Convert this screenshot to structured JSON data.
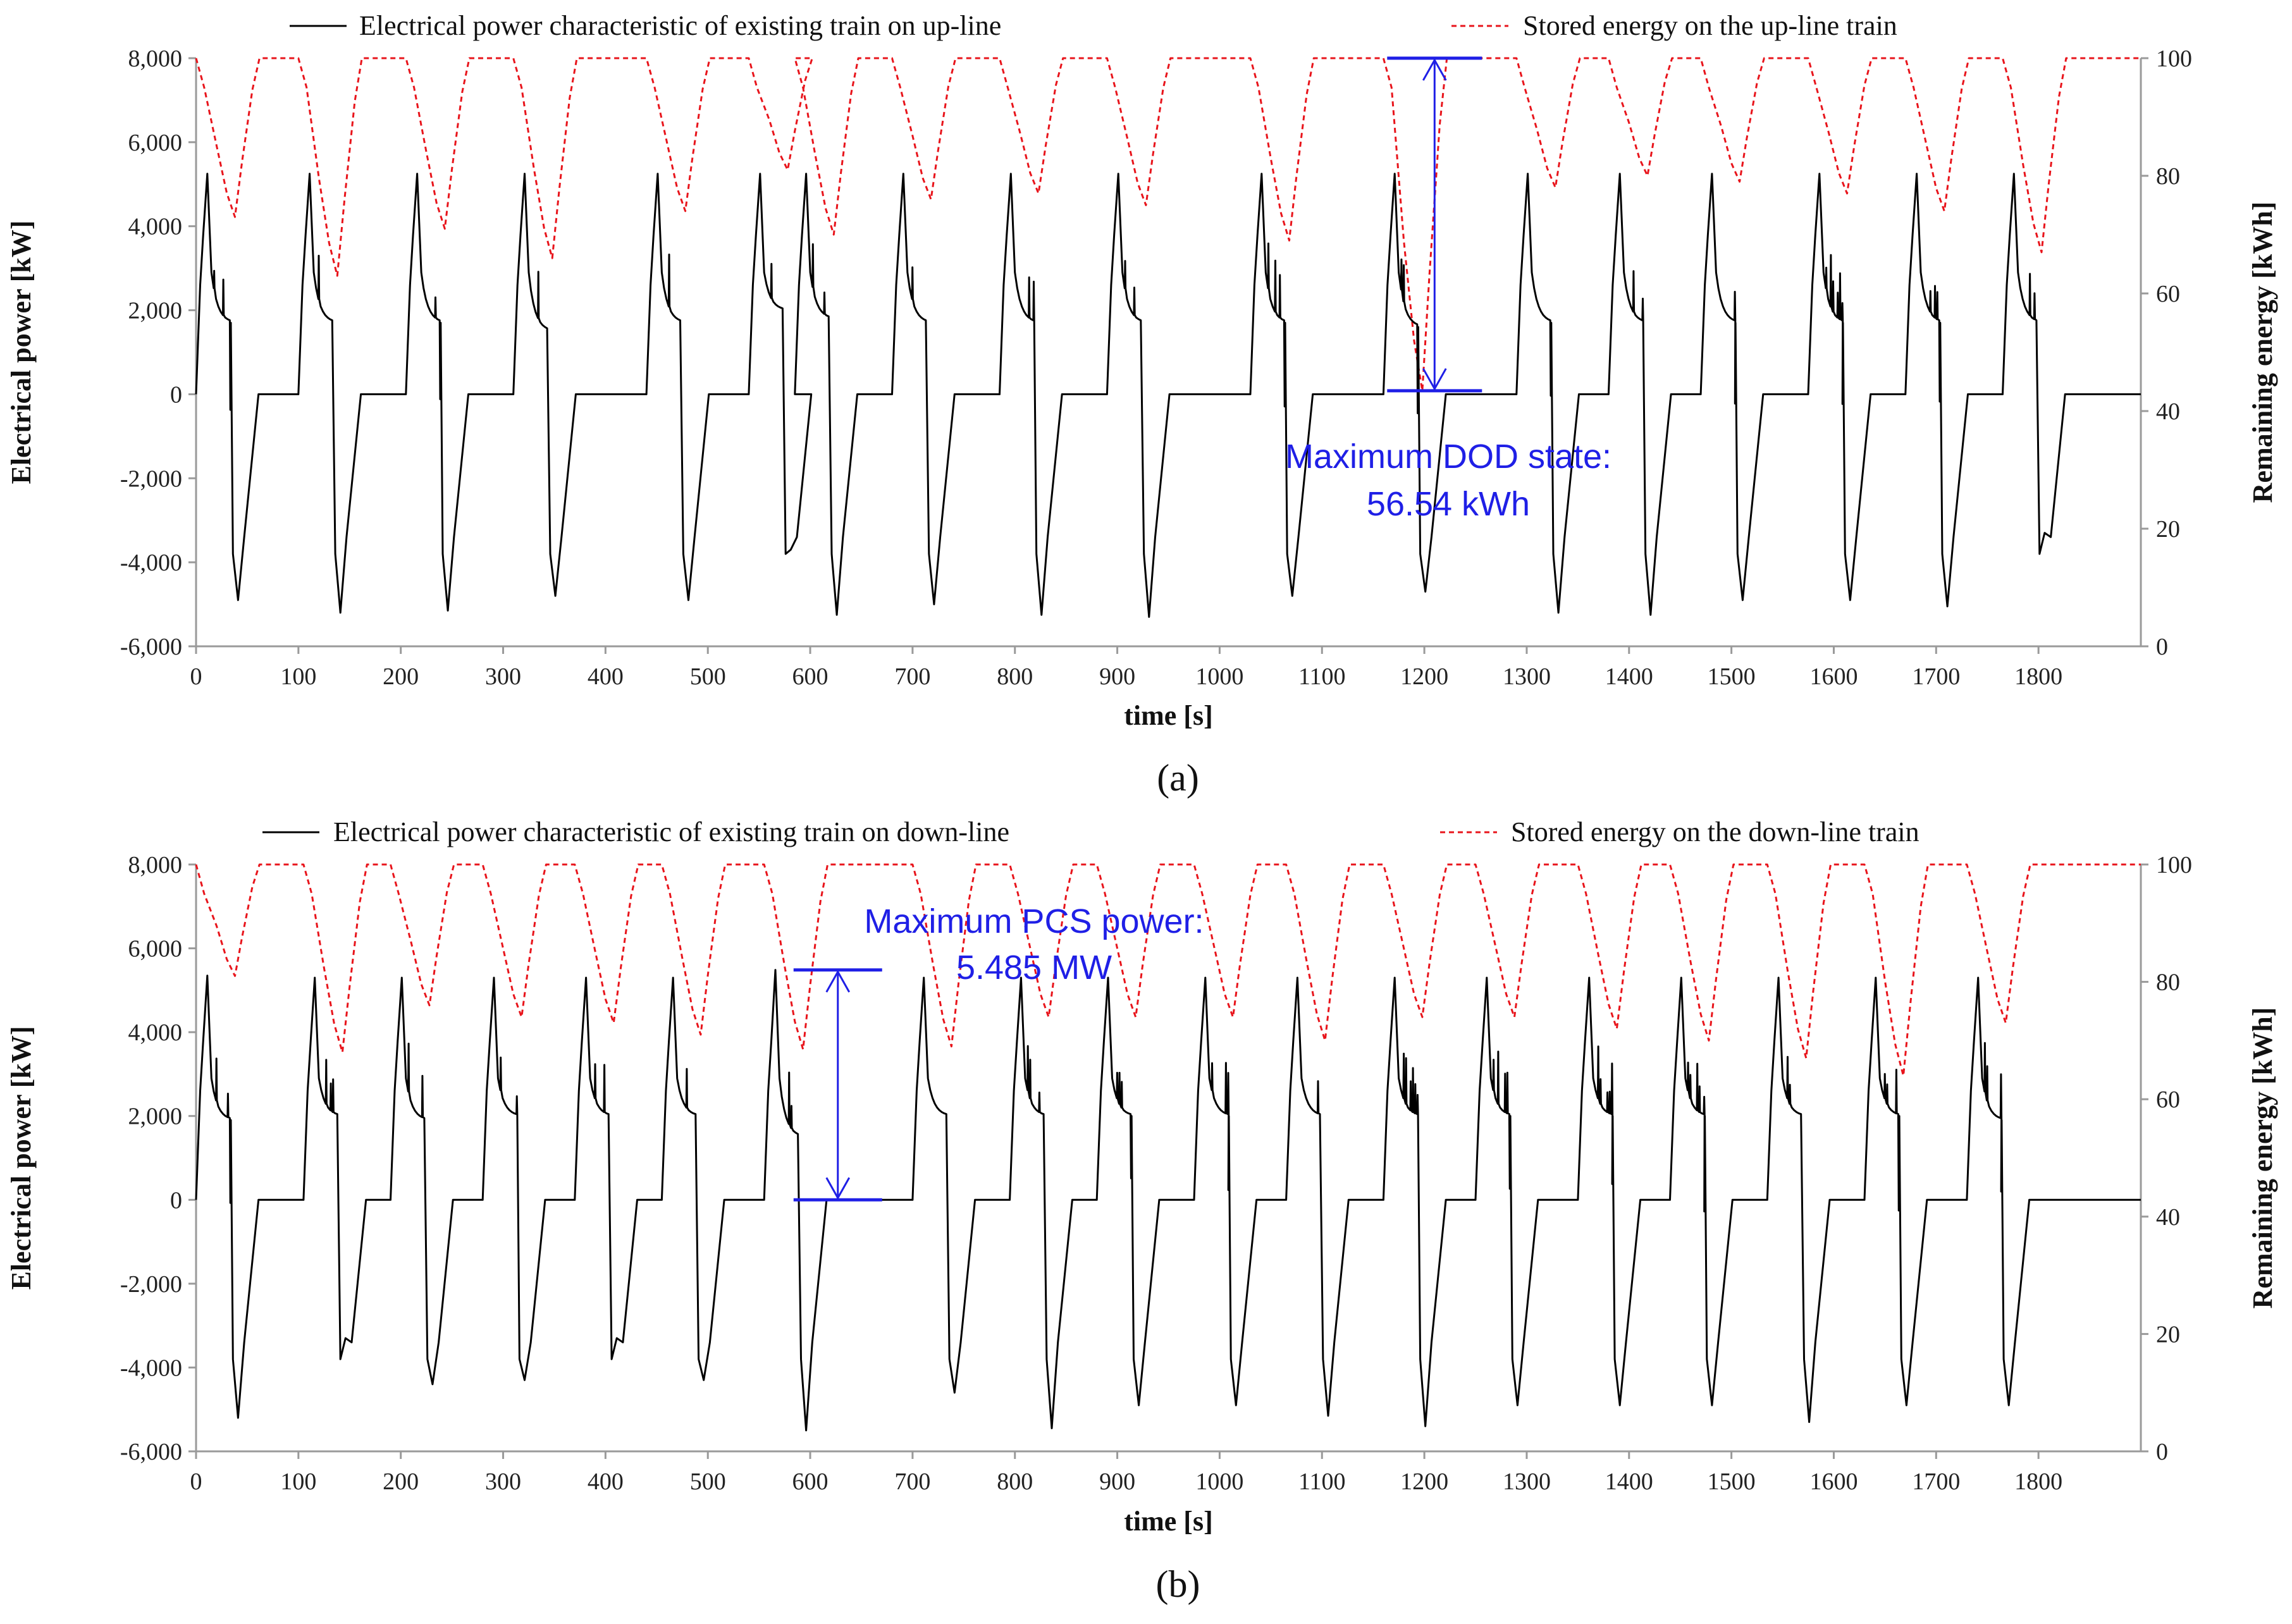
{
  "figure": {
    "panel_a_label": "(a)",
    "panel_b_label": "(b)"
  },
  "colors": {
    "power": "#000000",
    "energy": "#e8141b",
    "annotation": "#1f1fe6",
    "axis": "#9a9a9a"
  },
  "chart_data": [
    {
      "id": "a",
      "type": "line",
      "xlabel": "time [s]",
      "ylabel": "Electrical power [kW]",
      "y2label": "Remaining energy [kWh]",
      "xlim": [
        0,
        1900
      ],
      "ylim": [
        -6000,
        8000
      ],
      "y2lim": [
        0,
        100
      ],
      "x_ticks": [
        "0",
        "100",
        "200",
        "300",
        "400",
        "500",
        "600",
        "700",
        "800",
        "900",
        "1000",
        "1100",
        "1200",
        "1300",
        "1400",
        "1500",
        "1600",
        "1700",
        "1800"
      ],
      "y_ticks": [
        "-6,000",
        "-4,000",
        "-2,000",
        "0",
        "2,000",
        "4,000",
        "6,000",
        "8,000"
      ],
      "y2_ticks": [
        "0",
        "20",
        "40",
        "60",
        "80",
        "100"
      ],
      "legend": {
        "power": "Electrical power characteristic of existing train on up-line",
        "energy": "Stored energy on the up-line train"
      },
      "annotation": {
        "line1": "Maximum DOD state:",
        "line2": "56.54 kWh",
        "x": 1210,
        "from_kWh": 100,
        "to_kWh": 43.46
      },
      "cycle_starts": [
        0,
        100,
        205,
        310,
        440,
        540,
        585,
        680,
        785,
        890,
        1030,
        1160,
        1290,
        1380,
        1470,
        1575,
        1670,
        1765
      ],
      "series": [
        {
          "name": "power",
          "axis": "left",
          "style": "solid",
          "cycles": [
            {
              "peak": 5250,
              "cruise": 1700,
              "min": -4900
            },
            {
              "peak": 5250,
              "cruise": 1700,
              "min": -5200
            },
            {
              "peak": 5250,
              "cruise": 1700,
              "min": -5150
            },
            {
              "peak": 5250,
              "cruise": 1500,
              "min": -4800
            },
            {
              "peak": 5250,
              "cruise": 1700,
              "min": -4900
            },
            {
              "peak": 5250,
              "cruise": 2000,
              "min": -3700
            },
            {
              "peak": 5250,
              "cruise": 1800,
              "min": -5250
            },
            {
              "peak": 5250,
              "cruise": 1700,
              "min": -5000
            },
            {
              "peak": 5250,
              "cruise": 1700,
              "min": -5250
            },
            {
              "peak": 5250,
              "cruise": 1700,
              "min": -5300
            },
            {
              "peak": 5250,
              "cruise": 1700,
              "min": -4800
            },
            {
              "peak": 5250,
              "cruise": 1600,
              "min": -4700
            },
            {
              "peak": 5250,
              "cruise": 1700,
              "min": -5200
            },
            {
              "peak": 5250,
              "cruise": 1700,
              "min": -5250
            },
            {
              "peak": 5250,
              "cruise": 1700,
              "min": -4900
            },
            {
              "peak": 5250,
              "cruise": 1700,
              "min": -4900
            },
            {
              "peak": 5250,
              "cruise": 1700,
              "min": -5050
            },
            {
              "peak": 5250,
              "cruise": 1700,
              "min": -3300
            }
          ]
        },
        {
          "name": "energy",
          "axis": "right",
          "style": "dashed",
          "cycle_minima": [
            73,
            63,
            71,
            66,
            74,
            81,
            70,
            76,
            77,
            75,
            69,
            43.46,
            78,
            80,
            79,
            77,
            74,
            67
          ]
        }
      ]
    },
    {
      "id": "b",
      "type": "line",
      "xlabel": "time [s]",
      "ylabel": "Electrical power [kW]",
      "y2label": "Remaining energy [kWh]",
      "xlim": [
        0,
        1900
      ],
      "ylim": [
        -6000,
        8000
      ],
      "y2lim": [
        0,
        100
      ],
      "x_ticks": [
        "0",
        "100",
        "200",
        "300",
        "400",
        "500",
        "600",
        "700",
        "800",
        "900",
        "1000",
        "1100",
        "1200",
        "1300",
        "1400",
        "1500",
        "1600",
        "1700",
        "1800"
      ],
      "y_ticks": [
        "-6,000",
        "-4,000",
        "-2,000",
        "0",
        "2,000",
        "4,000",
        "6,000",
        "8,000"
      ],
      "y2_ticks": [
        "0",
        "20",
        "40",
        "60",
        "80",
        "100"
      ],
      "legend": {
        "power": "Electrical power characteristic of existing train on down-line",
        "energy": "Stored energy on the down-line train"
      },
      "annotation": {
        "line1": "Maximum PCS power:",
        "line2": "5.485 MW",
        "x": 627,
        "from_kW": 5485,
        "to_kW": 0
      },
      "cycle_starts": [
        0,
        105,
        190,
        280,
        370,
        455,
        555,
        700,
        795,
        880,
        975,
        1065,
        1160,
        1250,
        1350,
        1440,
        1535,
        1630,
        1730
      ],
      "series": [
        {
          "name": "power",
          "axis": "left",
          "style": "solid",
          "cycles": [
            {
              "peak": 5350,
              "cruise": 1900,
              "min": -5200
            },
            {
              "peak": 5300,
              "cruise": 2000,
              "min": -3300
            },
            {
              "peak": 5300,
              "cruise": 1900,
              "min": -4400
            },
            {
              "peak": 5300,
              "cruise": 2000,
              "min": -4300
            },
            {
              "peak": 5300,
              "cruise": 2000,
              "min": -3300
            },
            {
              "peak": 5300,
              "cruise": 2000,
              "min": -4300
            },
            {
              "peak": 5485,
              "cruise": 1500,
              "min": -5500
            },
            {
              "peak": 5300,
              "cruise": 2000,
              "min": -4600
            },
            {
              "peak": 5300,
              "cruise": 2000,
              "min": -5450
            },
            {
              "peak": 5300,
              "cruise": 2000,
              "min": -4900
            },
            {
              "peak": 5300,
              "cruise": 2000,
              "min": -4900
            },
            {
              "peak": 5300,
              "cruise": 2000,
              "min": -5150
            },
            {
              "peak": 5300,
              "cruise": 2000,
              "min": -5400
            },
            {
              "peak": 5300,
              "cruise": 2000,
              "min": -4900
            },
            {
              "peak": 5300,
              "cruise": 2000,
              "min": -4900
            },
            {
              "peak": 5300,
              "cruise": 2000,
              "min": -4900
            },
            {
              "peak": 5300,
              "cruise": 2000,
              "min": -5300
            },
            {
              "peak": 5300,
              "cruise": 2000,
              "min": -4900
            },
            {
              "peak": 5300,
              "cruise": 1900,
              "min": -4900
            }
          ]
        },
        {
          "name": "energy",
          "axis": "right",
          "style": "dashed",
          "cycle_minima": [
            81,
            68,
            76,
            74,
            73,
            71,
            68.5,
            69,
            74,
            74,
            74,
            70,
            74,
            74,
            72,
            70,
            67,
            64,
            73
          ]
        }
      ]
    }
  ]
}
